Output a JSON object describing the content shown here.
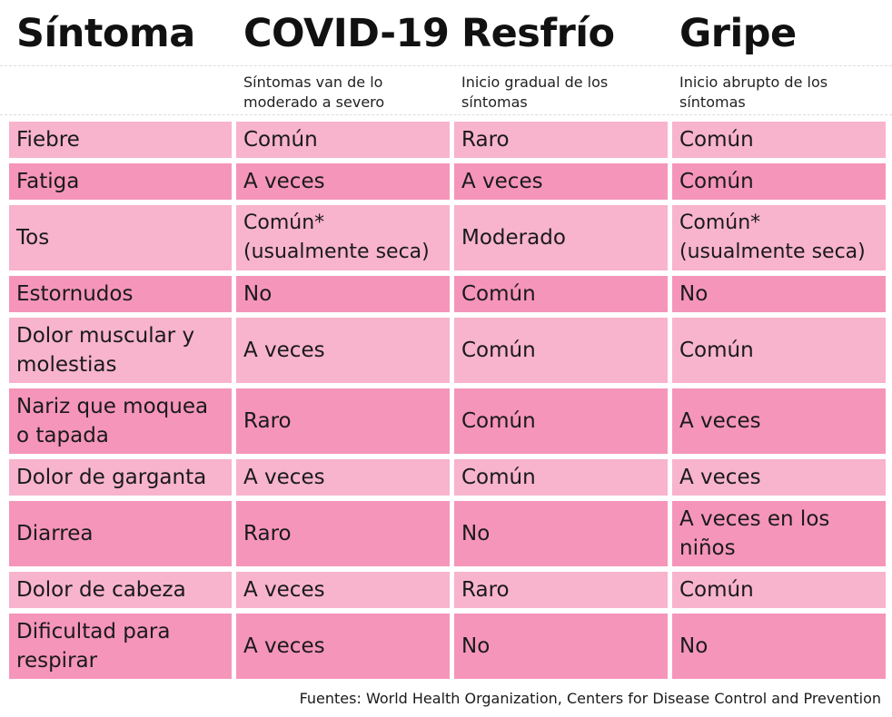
{
  "header": {
    "columns": [
      {
        "title": "Síntoma",
        "subtitle": ""
      },
      {
        "title": "COVID-19",
        "subtitle": "Síntomas van de lo moderado a severo"
      },
      {
        "title": "Resfrío",
        "subtitle": "Inicio gradual de los síntomas"
      },
      {
        "title": "Gripe",
        "subtitle": "Inicio abrupto de los síntomas"
      }
    ]
  },
  "rows": [
    {
      "symptom": "Fiebre",
      "covid": "Común",
      "cold": "Raro",
      "flu": "Común"
    },
    {
      "symptom": "Fatiga",
      "covid": "A veces",
      "cold": "A veces",
      "flu": "Común"
    },
    {
      "symptom": "Tos",
      "covid": "Común*",
      "covid_note": "(usualmente seca)",
      "cold": "Moderado",
      "flu": "Común*",
      "flu_note": "(usualmente seca)"
    },
    {
      "symptom": "Estornudos",
      "covid": "No",
      "cold": "Común",
      "flu": "No"
    },
    {
      "symptom": "Dolor muscular y molestias",
      "covid": "A veces",
      "cold": "Común",
      "flu": "Común"
    },
    {
      "symptom": "Nariz que moquea o tapada",
      "covid": "Raro",
      "cold": "Común",
      "flu": "A veces"
    },
    {
      "symptom": "Dolor de garganta",
      "covid": "A veces",
      "cold": "Común",
      "flu": "A veces"
    },
    {
      "symptom": "Diarrea",
      "covid": "Raro",
      "cold": "No",
      "flu": "A veces en los niños"
    },
    {
      "symptom": "Dolor de cabeza",
      "covid": "A veces",
      "cold": "Raro",
      "flu": "Común"
    },
    {
      "symptom": "Dificultad para respirar",
      "covid": "A veces",
      "cold": "No",
      "flu": "No"
    }
  ],
  "footer": {
    "sources": "Fuentes: World Health Organization, Centers for Disease Control and Prevention"
  },
  "colors": {
    "row_light": "#f8b3cd",
    "row_dark": "#f595b9",
    "text": "#1a1a1a"
  }
}
